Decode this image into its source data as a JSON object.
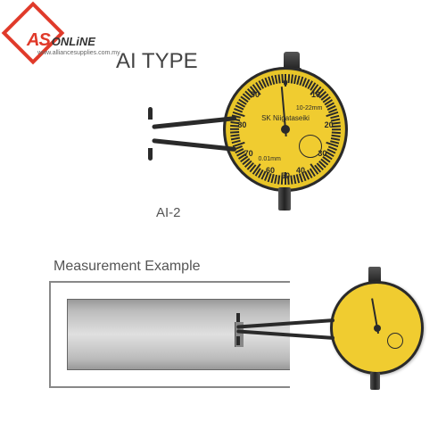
{
  "logo": {
    "main": "AS",
    "suffix": "ONLiNE",
    "sub": "www.alliancesupplies.com.my"
  },
  "product": {
    "title": "AI TYPE",
    "model": "AI-2",
    "dial": {
      "brand": "SK Niigataseiki",
      "range": "10-22mm",
      "graduation": "0.01mm",
      "tick_labels": [
        "0",
        "10",
        "20",
        "30",
        "40",
        "50",
        "60",
        "70",
        "80",
        "90"
      ],
      "face_color": "#f0cc30",
      "rim_color": "#2a2a2a"
    }
  },
  "example": {
    "title": "Measurement Example"
  },
  "colors": {
    "accent": "#e03a2a",
    "text_grey": "#555555"
  }
}
